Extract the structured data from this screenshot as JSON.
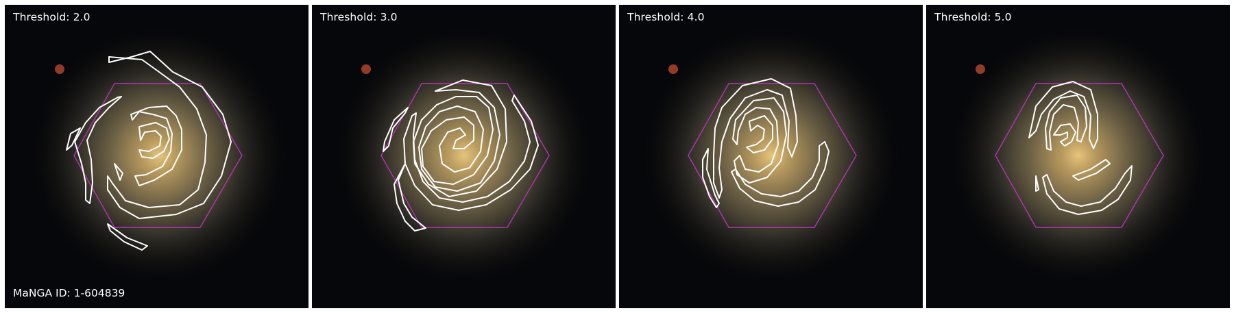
{
  "figure": {
    "manga_id_label": "MaNGA ID: 1-604839",
    "panels": [
      {
        "label": "Threshold: 2.0"
      },
      {
        "label": "Threshold: 3.0"
      },
      {
        "label": "Threshold: 4.0"
      },
      {
        "label": "Threshold: 5.0"
      }
    ]
  },
  "colors": {
    "hexagon": "#b534b5",
    "contour": "#ffffff",
    "galaxy_core": "#d8b873",
    "galaxy_disk": "#8c7a55",
    "red_star": "#c0452e",
    "background": "#000000"
  }
}
